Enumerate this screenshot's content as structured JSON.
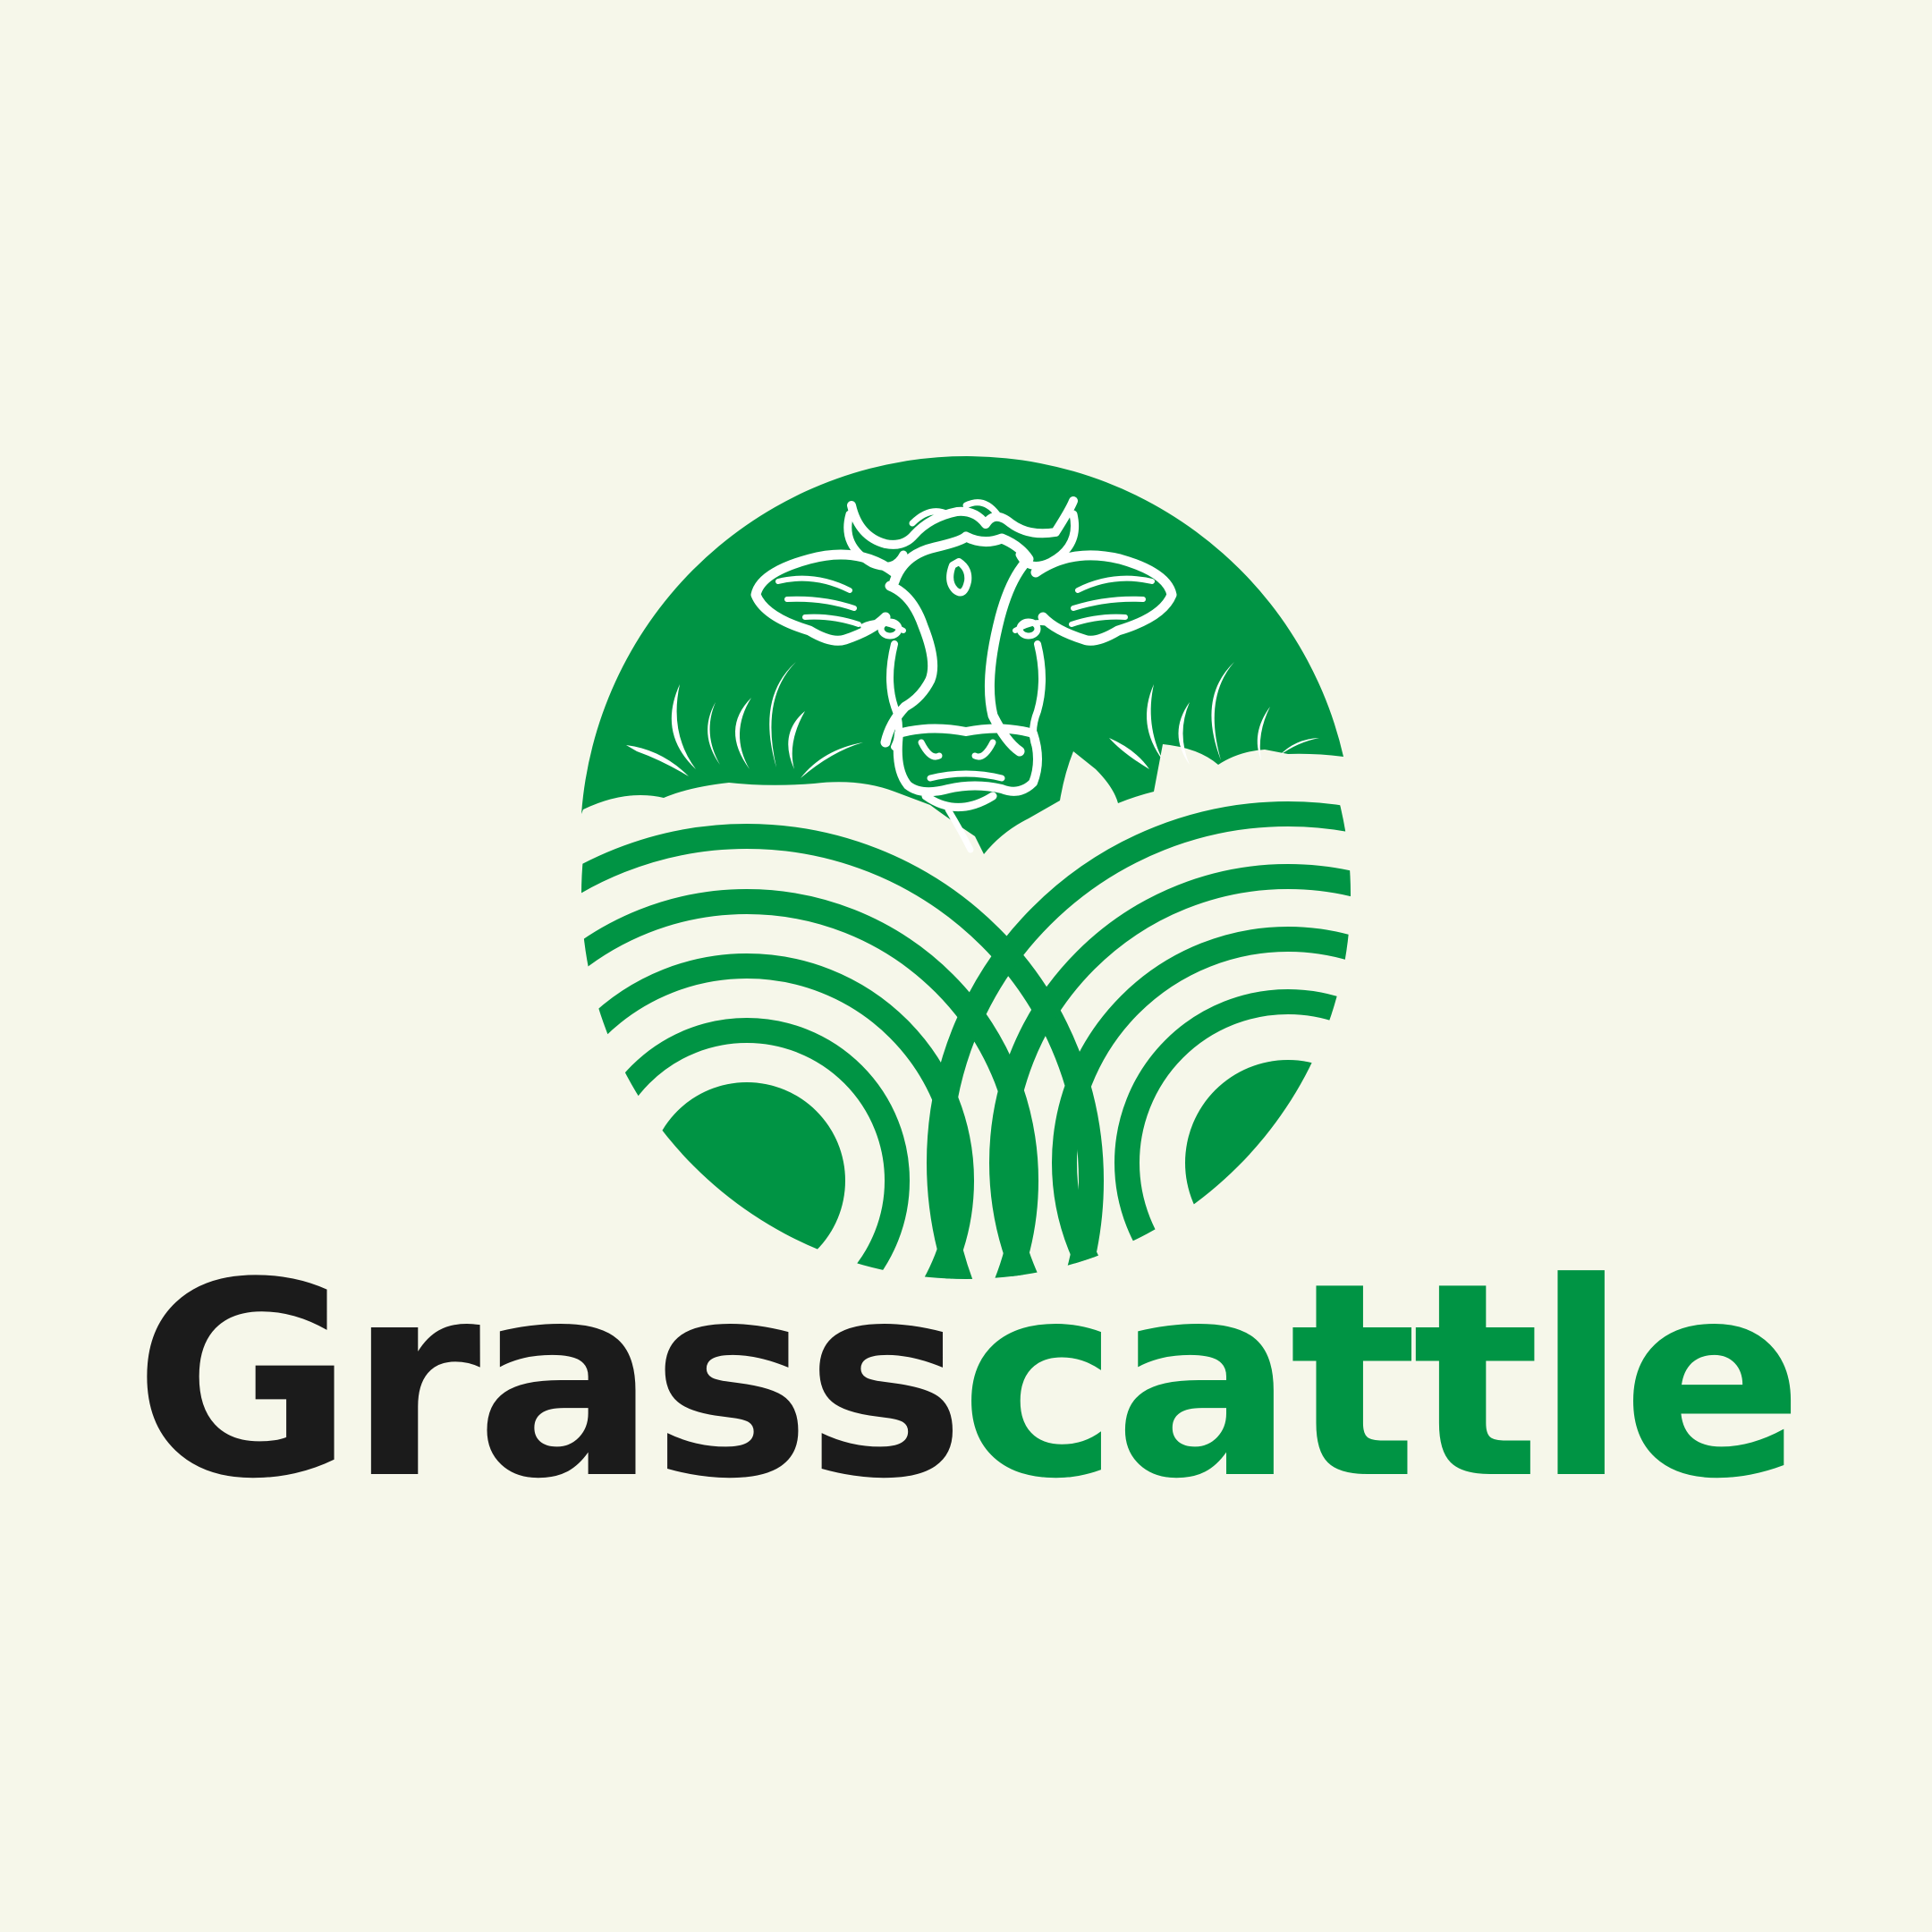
{
  "brand": {
    "name_part_1": "Grass",
    "name_part_2": "cattle"
  },
  "colors": {
    "background": "#f6f7ea",
    "brand_green": "#009444",
    "dark_text": "#1b1b1b",
    "line_art": "#ffffff"
  },
  "emblem": {
    "icon": "cow-in-grass-field-icon"
  }
}
